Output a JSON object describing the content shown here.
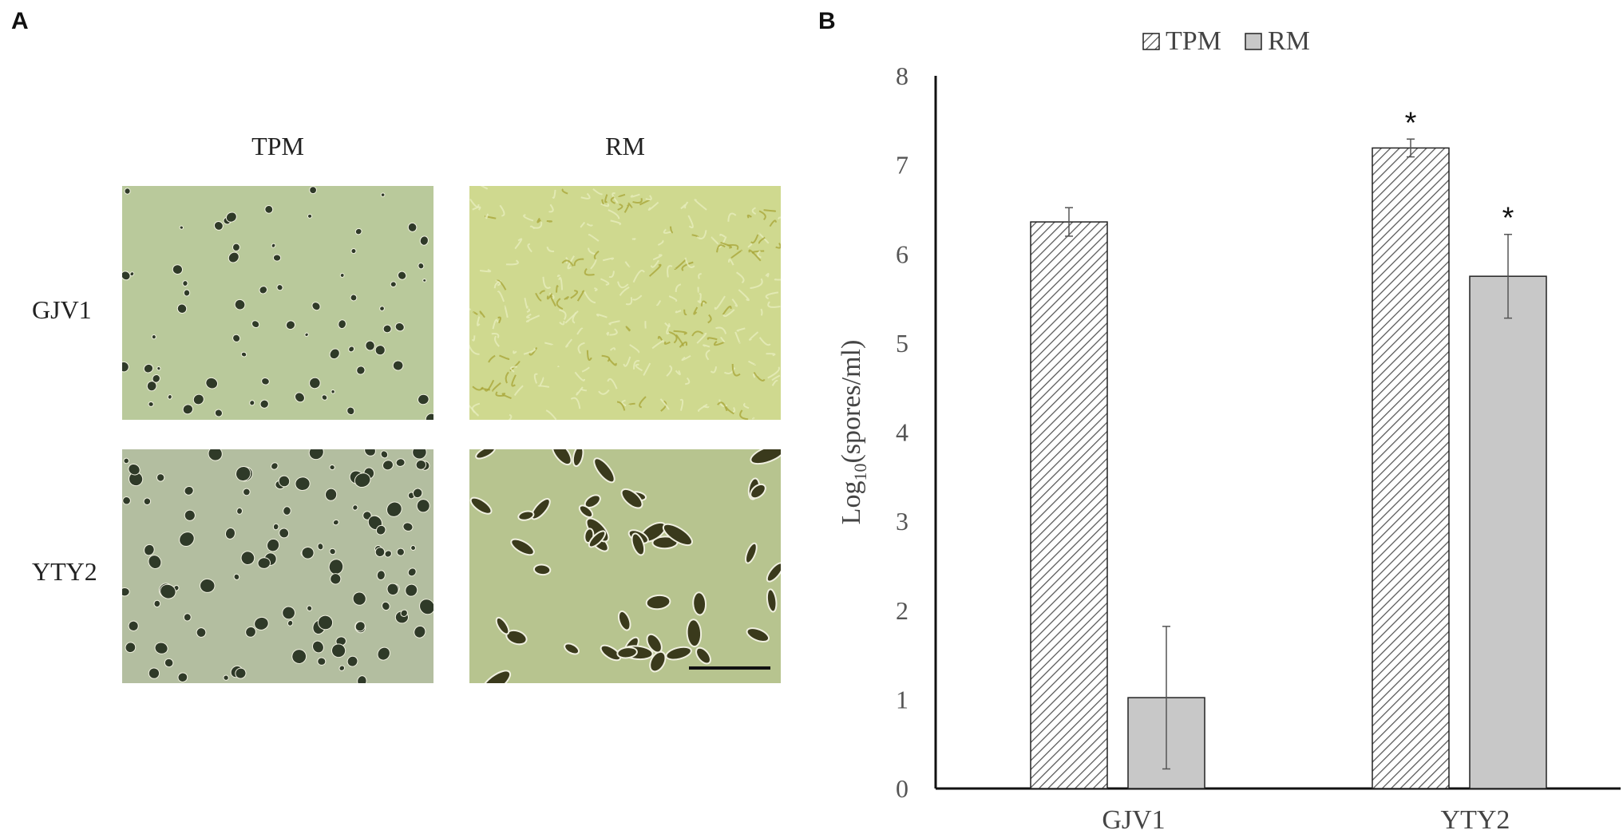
{
  "panel_a": {
    "letter": "A",
    "columns": [
      "TPM",
      "RM"
    ],
    "rows": [
      "GJV1",
      "YTY2"
    ],
    "images": [
      {
        "row": "GJV1",
        "column": "TPM",
        "description_icon": "micrograph-round-spores-sparse"
      },
      {
        "row": "GJV1",
        "column": "RM",
        "description_icon": "micrograph-dense-mycelium"
      },
      {
        "row": "YTY2",
        "column": "TPM",
        "description_icon": "micrograph-round-spores-dense"
      },
      {
        "row": "YTY2",
        "column": "RM",
        "description_icon": "micrograph-elongated-spores"
      }
    ],
    "colors": {
      "tpm_bg": "#b7c79a",
      "rm_bg": "#c6d48e",
      "spore": "#2f3a28",
      "rm_spore": "#3a3a1c"
    }
  },
  "panel_b": {
    "letter": "B"
  },
  "chart_data": {
    "type": "bar",
    "categories": [
      "GJV1",
      "YTY2"
    ],
    "series": [
      {
        "name": "TPM",
        "values": [
          6.36,
          7.19
        ],
        "errors": [
          0.16,
          0.1
        ],
        "pattern": "hatched",
        "significance": [
          "",
          "*"
        ]
      },
      {
        "name": "RM",
        "values": [
          1.02,
          5.75
        ],
        "errors": [
          0.8,
          0.47
        ],
        "pattern": "solid",
        "color": "#c8c8c8",
        "significance": [
          "",
          "*"
        ]
      }
    ],
    "ylabel_main": "Log",
    "ylabel_sub": "10",
    "ylabel_rest": "(spores/ml)",
    "ylim": [
      0,
      8
    ],
    "yticks": [
      "0",
      "1",
      "2",
      "3",
      "4",
      "5",
      "6",
      "7",
      "8"
    ],
    "legend_position": "top-center",
    "grid": false
  }
}
